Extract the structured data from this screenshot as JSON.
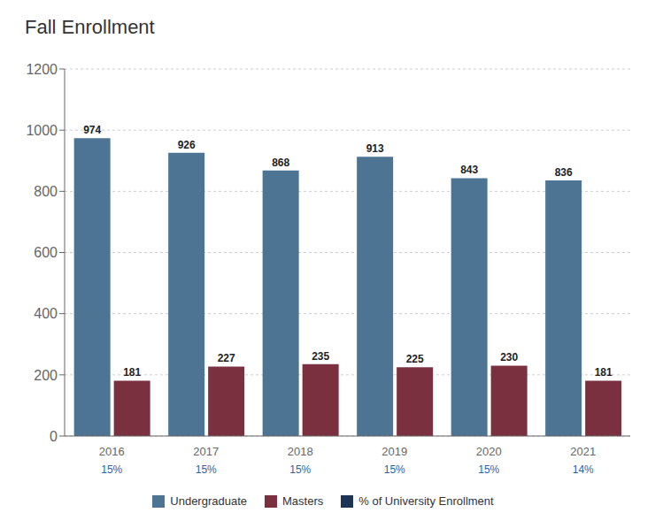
{
  "chart_data": {
    "type": "bar",
    "title": "Fall Enrollment",
    "categories": [
      "2016",
      "2017",
      "2018",
      "2019",
      "2020",
      "2021"
    ],
    "series": [
      {
        "name": "Undergraduate",
        "color": "#4d7492",
        "values": [
          974,
          926,
          868,
          913,
          843,
          836
        ]
      },
      {
        "name": "Masters",
        "color": "#7b3040",
        "values": [
          181,
          227,
          235,
          225,
          230,
          181
        ]
      },
      {
        "name": "% of University Enrollment",
        "type": "text",
        "color": "#1c3557",
        "colors": [
          "#2e5fa3",
          "#2e5fa3",
          "#2e5fa3",
          "#2e5fa3",
          "#2e5fa3",
          "#2e5fa3"
        ],
        "values": [
          15,
          15,
          15,
          15,
          15,
          14
        ],
        "value_labels": [
          "15%",
          "15%",
          "15%",
          "15%",
          "15%",
          "14%"
        ]
      }
    ],
    "ylim": [
      0,
      1200
    ],
    "yticks": [
      0,
      200,
      400,
      600,
      800,
      1000,
      1200
    ],
    "grid": true,
    "data_labels": true
  }
}
